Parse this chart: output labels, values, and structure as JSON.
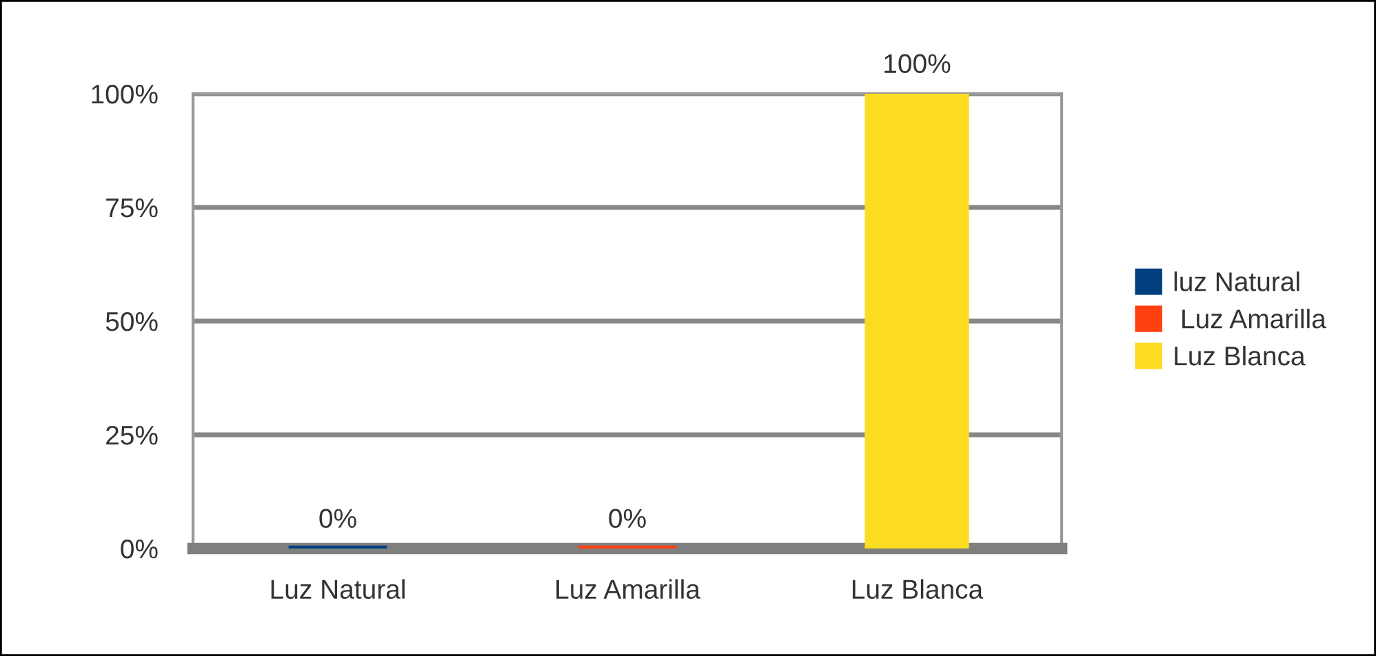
{
  "chart_data": {
    "type": "bar",
    "categories": [
      "Luz Natural",
      "Luz Amarilla",
      "Luz Blanca"
    ],
    "series": [
      {
        "name": "luz Natural",
        "color": "#003f7f",
        "values": [
          0,
          null,
          null
        ],
        "value_labels": [
          "0%",
          null,
          null
        ]
      },
      {
        "name": " Luz Amarilla",
        "color": "#ff4010",
        "values": [
          null,
          0,
          null
        ],
        "value_labels": [
          null,
          "0%",
          null
        ]
      },
      {
        "name": "Luz Blanca",
        "color": "#fcdc20",
        "values": [
          null,
          null,
          100
        ],
        "value_labels": [
          null,
          null,
          "100%"
        ]
      }
    ],
    "ylim": [
      0,
      100
    ],
    "yticks": [
      {
        "value": 0,
        "label": "0%"
      },
      {
        "value": 25,
        "label": "25%"
      },
      {
        "value": 50,
        "label": "50%"
      },
      {
        "value": 75,
        "label": "75%"
      },
      {
        "value": 100,
        "label": "100%"
      }
    ],
    "grid": "y",
    "legend": "right"
  }
}
